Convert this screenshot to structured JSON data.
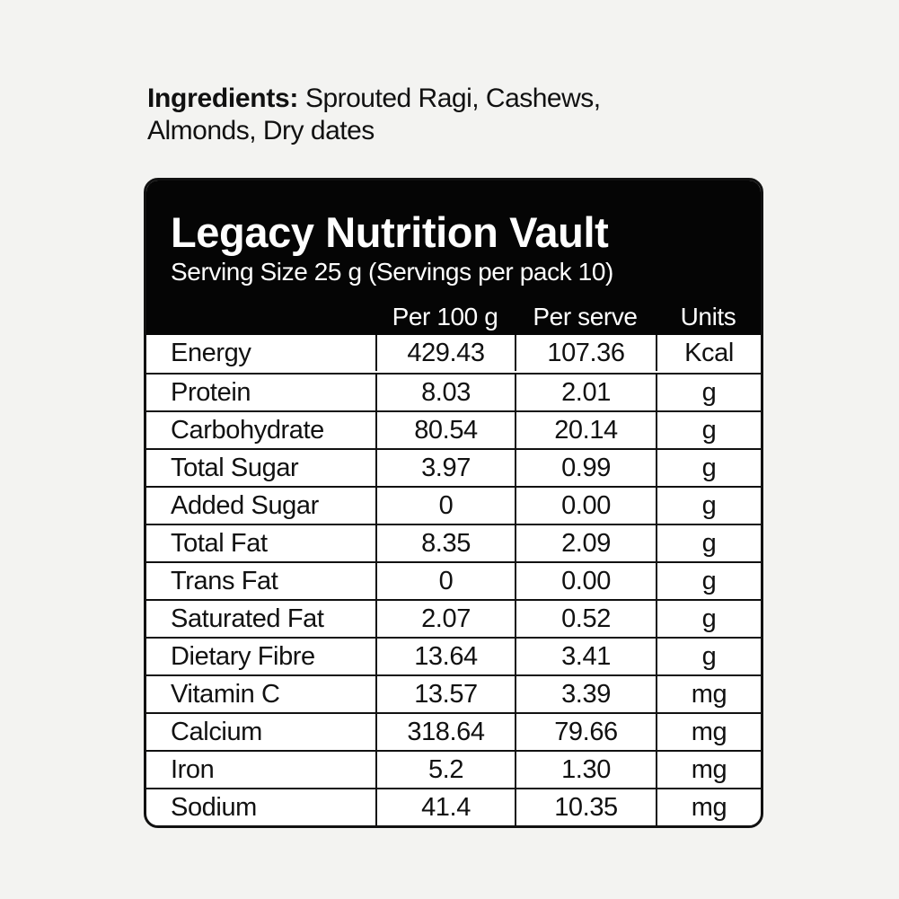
{
  "ingredients": {
    "label": "Ingredients:",
    "text": "Sprouted Ragi, Cashews, Almonds, Dry dates"
  },
  "panel": {
    "title": "Legacy Nutrition Vault",
    "serving": "Serving Size 25 g (Servings per pack 10)",
    "columns": {
      "per100": "Per 100 g",
      "perserve": "Per serve",
      "units": "Units"
    }
  },
  "rows": [
    {
      "name": "Energy",
      "per100": "429.43",
      "perserve": "107.36",
      "unit": "Kcal"
    },
    {
      "name": "Protein",
      "per100": "8.03",
      "perserve": "2.01",
      "unit": "g"
    },
    {
      "name": "Carbohydrate",
      "per100": "80.54",
      "perserve": "20.14",
      "unit": "g"
    },
    {
      "name": "Total Sugar",
      "per100": "3.97",
      "perserve": "0.99",
      "unit": "g"
    },
    {
      "name": "Added Sugar",
      "per100": "0",
      "perserve": "0.00",
      "unit": "g"
    },
    {
      "name": "Total Fat",
      "per100": "8.35",
      "perserve": "2.09",
      "unit": "g"
    },
    {
      "name": "Trans Fat",
      "per100": "0",
      "perserve": "0.00",
      "unit": "g"
    },
    {
      "name": "Saturated Fat",
      "per100": "2.07",
      "perserve": "0.52",
      "unit": "g"
    },
    {
      "name": "Dietary Fibre",
      "per100": "13.64",
      "perserve": "3.41",
      "unit": "g"
    },
    {
      "name": "Vitamin C",
      "per100": "13.57",
      "perserve": "3.39",
      "unit": "mg"
    },
    {
      "name": "Calcium",
      "per100": "318.64",
      "perserve": "79.66",
      "unit": "mg"
    },
    {
      "name": "Iron",
      "per100": "5.2",
      "perserve": "1.30",
      "unit": "mg"
    },
    {
      "name": "Sodium",
      "per100": "41.4",
      "perserve": "10.35",
      "unit": "mg"
    }
  ]
}
